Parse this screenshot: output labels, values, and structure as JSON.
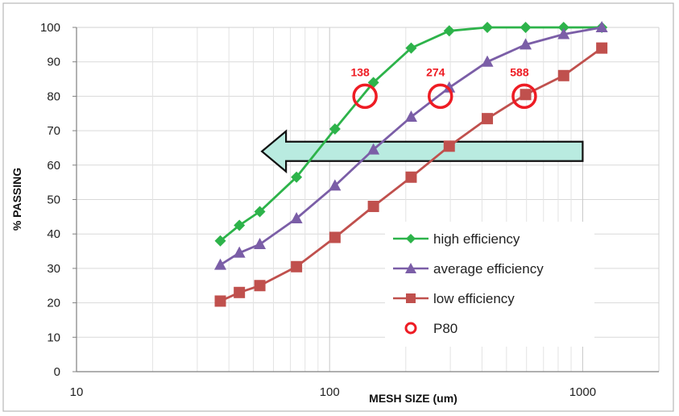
{
  "chart_data": {
    "type": "line",
    "xscale": "log",
    "xlabel": "MESH SIZE (um)",
    "ylabel": "% PASSING",
    "xlim": [
      10,
      2000
    ],
    "ylim": [
      0,
      100
    ],
    "xticks": [
      "10",
      "100",
      "1000"
    ],
    "yticks": [
      "0",
      "10",
      "20",
      "30",
      "40",
      "50",
      "60",
      "70",
      "80",
      "90",
      "100"
    ],
    "grid": true,
    "legend_position": "bottom-right",
    "series": [
      {
        "name": "high efficiency",
        "color": "#2db34a",
        "marker": "diamond",
        "x": [
          37,
          44,
          53,
          74,
          105,
          149,
          210,
          297,
          420,
          595,
          841,
          1190
        ],
        "y": [
          38,
          42.5,
          46.5,
          56.5,
          70.5,
          84,
          94,
          99,
          100,
          100,
          100,
          100
        ]
      },
      {
        "name": "average efficiency",
        "color": "#7b5ea7",
        "marker": "triangle",
        "x": [
          37,
          44,
          53,
          74,
          105,
          149,
          210,
          297,
          420,
          595,
          841,
          1190
        ],
        "y": [
          31,
          34.5,
          37,
          44.5,
          54,
          64.5,
          74,
          82.5,
          90,
          95,
          98,
          100
        ]
      },
      {
        "name": "low efficiency",
        "color": "#c0504d",
        "marker": "square",
        "x": [
          37,
          44,
          53,
          74,
          105,
          149,
          210,
          297,
          420,
          595,
          841,
          1190
        ],
        "y": [
          20.5,
          23,
          25,
          30.5,
          39,
          48,
          56.5,
          65.5,
          73.5,
          80.5,
          86,
          94
        ]
      }
    ],
    "p80": {
      "name": "P80",
      "color": "#ee1c24",
      "points": [
        {
          "x": 138,
          "y": 80,
          "label": "138"
        },
        {
          "x": 274,
          "y": 80,
          "label": "274"
        },
        {
          "x": 588,
          "y": 80,
          "label": "588"
        }
      ]
    },
    "annotation_arrow": {
      "from_x": 1000,
      "to_x": 54,
      "y": 64,
      "color": "#b9ebe0",
      "direction": "left"
    }
  }
}
